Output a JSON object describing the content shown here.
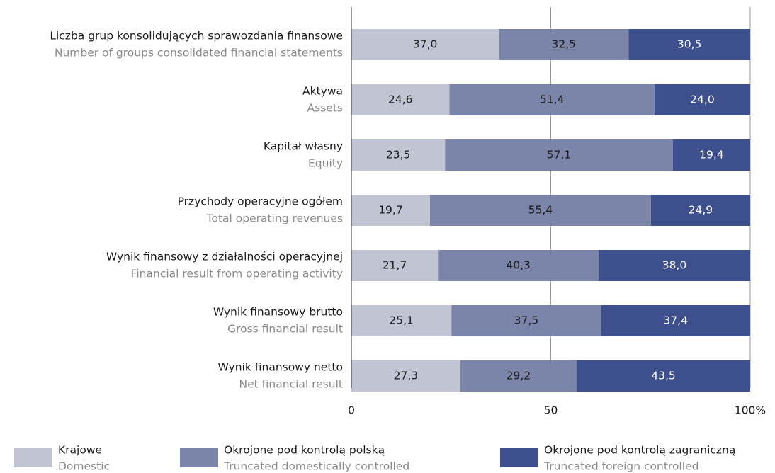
{
  "chart_data": {
    "type": "stacked_barh",
    "categories": [
      "Liczba grup konsolidujących sprawozdania finansowe",
      "Aktywa",
      "Kapitał własny",
      "Przychody operacyjne ogółem",
      "Wynik finansowy z działalności operacyjnej",
      "Wynik finansowy brutto",
      "Wynik finansowy netto"
    ],
    "categories_en": [
      "Number of groups consolidated financial statements",
      "Assets",
      "Equity",
      "Total operating revenues",
      "Financial result from operating activity",
      "Gross financial result",
      "Net financial result"
    ],
    "series": [
      {
        "name": "Krajowe",
        "name_en": "Domestic",
        "color": "#c1c5d3",
        "label_color": "#1a1a1a",
        "values": [
          37.0,
          24.6,
          23.5,
          19.7,
          21.7,
          25.1,
          27.3
        ],
        "value_labels": [
          "37,0",
          "24,6",
          "23,5",
          "19,7",
          "21,7",
          "25,1",
          "27,3"
        ]
      },
      {
        "name": "Okrojone pod kontrolą polską",
        "name_en": "Truncated domestically controlled",
        "color": "#7b84a9",
        "label_color": "#1a1a1a",
        "values": [
          32.5,
          51.4,
          57.1,
          55.4,
          40.3,
          37.5,
          29.2
        ],
        "value_labels": [
          "32,5",
          "51,4",
          "57,1",
          "55,4",
          "40,3",
          "37,5",
          "29,2"
        ]
      },
      {
        "name": "Okrojone pod kontrolą zagraniczną",
        "name_en": "Truncated foreign controlled",
        "color": "#3d508d",
        "label_color": "#ffffff",
        "values": [
          30.5,
          24.0,
          19.4,
          24.9,
          38.0,
          37.4,
          43.5
        ],
        "value_labels": [
          "30,5",
          "24,0",
          "19,4",
          "24,9",
          "38,0",
          "37,4",
          "43,5"
        ]
      }
    ],
    "xlim": [
      0,
      100
    ],
    "xticks": [
      0,
      50,
      {
        "value": 100,
        "label": "100%"
      }
    ],
    "grid": true
  }
}
